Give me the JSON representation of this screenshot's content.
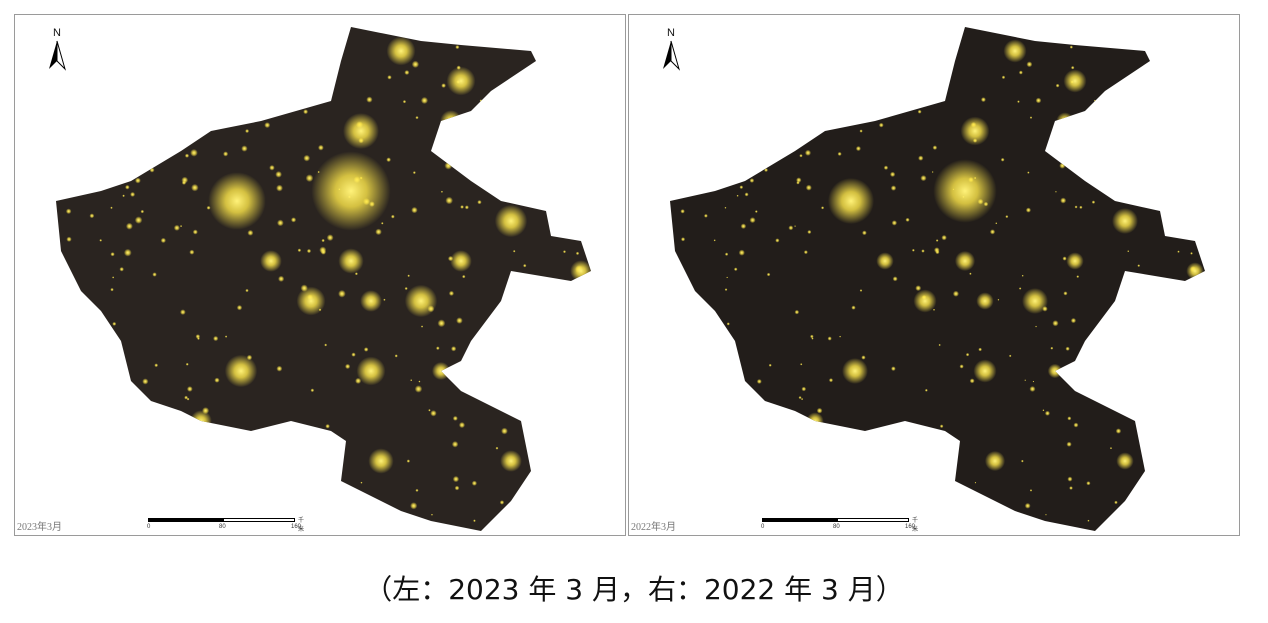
{
  "panels": [
    {
      "date_label": "2023年3月",
      "north_label": "N",
      "scale": {
        "ticks": [
          "0",
          "80",
          "160"
        ],
        "unit": "千米"
      }
    },
    {
      "date_label": "2022年3月",
      "north_label": "N",
      "scale": {
        "ticks": [
          "0",
          "80",
          "160"
        ],
        "unit": "千米"
      }
    }
  ],
  "caption": "（左：2023 年 3 月，右：2022 年 3 月）",
  "colors": {
    "land": "#2a2420",
    "light": "#ffe84a",
    "glow": "#fff27a"
  }
}
